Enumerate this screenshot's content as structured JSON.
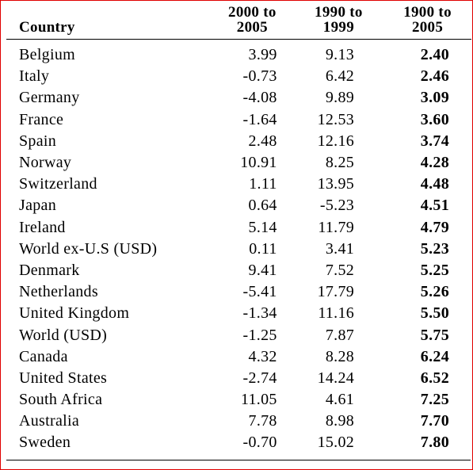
{
  "columns": [
    "Country",
    "2000 to\n2005",
    "1990 to\n1999",
    "1900 to\n2005"
  ],
  "header": {
    "country": "Country",
    "col1_line1": "2000 to",
    "col1_line2": "2005",
    "col2_line1": "1990 to",
    "col2_line2": "1999",
    "col3_line1": "1900 to",
    "col3_line2": "2005"
  },
  "rows": [
    {
      "country": "Belgium",
      "v2000_2005": "3.99",
      "v1990_1999": "9.13",
      "v1900_2005": "2.40"
    },
    {
      "country": "Italy",
      "v2000_2005": "-0.73",
      "v1990_1999": "6.42",
      "v1900_2005": "2.46"
    },
    {
      "country": "Germany",
      "v2000_2005": "-4.08",
      "v1990_1999": "9.89",
      "v1900_2005": "3.09"
    },
    {
      "country": "France",
      "v2000_2005": "-1.64",
      "v1990_1999": "12.53",
      "v1900_2005": "3.60"
    },
    {
      "country": "Spain",
      "v2000_2005": "2.48",
      "v1990_1999": "12.16",
      "v1900_2005": "3.74"
    },
    {
      "country": "Norway",
      "v2000_2005": "10.91",
      "v1990_1999": "8.25",
      "v1900_2005": "4.28"
    },
    {
      "country": "Switzerland",
      "v2000_2005": "1.11",
      "v1990_1999": "13.95",
      "v1900_2005": "4.48"
    },
    {
      "country": "Japan",
      "v2000_2005": "0.64",
      "v1990_1999": "-5.23",
      "v1900_2005": "4.51"
    },
    {
      "country": "Ireland",
      "v2000_2005": "5.14",
      "v1990_1999": "11.79",
      "v1900_2005": "4.79"
    },
    {
      "country": "World ex-U.S (USD)",
      "v2000_2005": "0.11",
      "v1990_1999": "3.41",
      "v1900_2005": "5.23"
    },
    {
      "country": "Denmark",
      "v2000_2005": "9.41",
      "v1990_1999": "7.52",
      "v1900_2005": "5.25"
    },
    {
      "country": "Netherlands",
      "v2000_2005": "-5.41",
      "v1990_1999": "17.79",
      "v1900_2005": "5.26"
    },
    {
      "country": "United Kingdom",
      "v2000_2005": "-1.34",
      "v1990_1999": "11.16",
      "v1900_2005": "5.50"
    },
    {
      "country": "World (USD)",
      "v2000_2005": "-1.25",
      "v1990_1999": "7.87",
      "v1900_2005": "5.75"
    },
    {
      "country": "Canada",
      "v2000_2005": "4.32",
      "v1990_1999": "8.28",
      "v1900_2005": "6.24"
    },
    {
      "country": "United States",
      "v2000_2005": "-2.74",
      "v1990_1999": "14.24",
      "v1900_2005": "6.52"
    },
    {
      "country": "South Africa",
      "v2000_2005": "11.05",
      "v1990_1999": "4.61",
      "v1900_2005": "7.25"
    },
    {
      "country": "Australia",
      "v2000_2005": "7.78",
      "v1990_1999": "8.98",
      "v1900_2005": "7.70"
    },
    {
      "country": "Sweden",
      "v2000_2005": "-0.70",
      "v1990_1999": "15.02",
      "v1900_2005": "7.80"
    }
  ],
  "colors": {
    "frame_border": "#e00000",
    "text": "#000000",
    "background": "#ffffff"
  }
}
